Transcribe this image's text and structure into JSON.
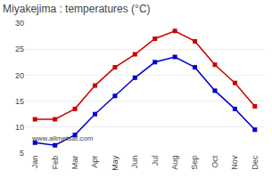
{
  "chart_data": {
    "type": "line",
    "title": "Miyakejima : temperatures (°C)",
    "categories": [
      "Jan",
      "Feb",
      "Mar",
      "Apr",
      "May",
      "Jun",
      "Jul",
      "Aug",
      "Sep",
      "Oct",
      "Nov",
      "Dec"
    ],
    "series": [
      {
        "color": "#cc0000",
        "marker": "square",
        "values": [
          11.5,
          11.5,
          13.5,
          18.0,
          21.5,
          24.0,
          27.0,
          28.5,
          26.5,
          22.0,
          18.5,
          14.0
        ]
      },
      {
        "color": "#0000cc",
        "marker": "square",
        "values": [
          7.0,
          6.5,
          8.5,
          12.5,
          16.0,
          19.5,
          22.5,
          23.5,
          21.5,
          17.0,
          13.5,
          9.5
        ]
      }
    ],
    "ylim": [
      5,
      30
    ],
    "yticks": [
      5,
      10,
      15,
      20,
      25,
      30
    ],
    "grid": true,
    "annotations": [
      "www.allmetsat.com"
    ]
  }
}
